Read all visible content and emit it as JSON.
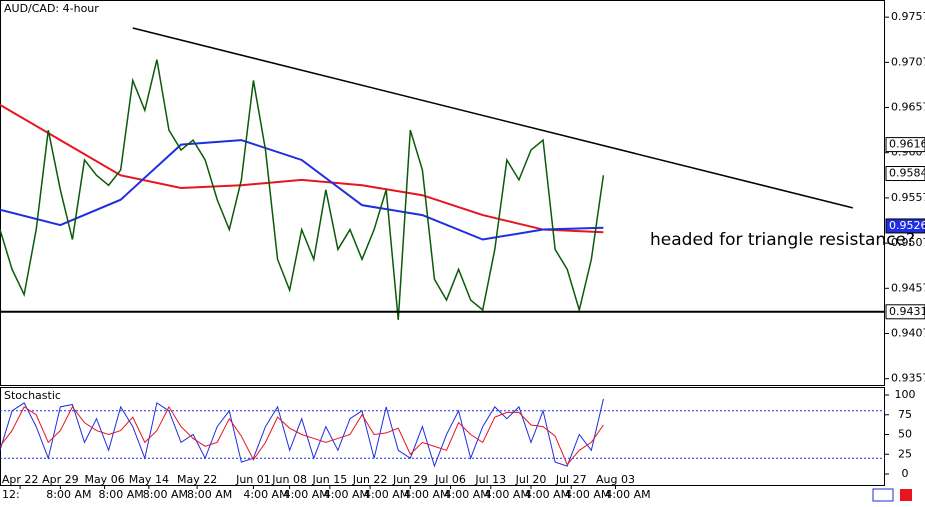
{
  "chart_data": {
    "type": "line",
    "title": "AUD/CAD: 4-hour",
    "annotation": "headed for triangle resistance?",
    "xlim": [
      0,
      220
    ],
    "xticks": [
      {
        "value": 5,
        "label": "Apr 22"
      },
      {
        "value": 15,
        "label": "Apr 29"
      },
      {
        "value": 26,
        "label": "May 06"
      },
      {
        "value": 37,
        "label": "May 14"
      },
      {
        "value": 49,
        "label": "May 22"
      },
      {
        "value": 63,
        "label": "Jun 01"
      },
      {
        "value": 72,
        "label": "Jun 08"
      },
      {
        "value": 82,
        "label": "Jun 15"
      },
      {
        "value": 92,
        "label": "Jun 22"
      },
      {
        "value": 102,
        "label": "Jun 29"
      },
      {
        "value": 112,
        "label": "Jul 06"
      },
      {
        "value": 122,
        "label": "Jul 13"
      },
      {
        "value": 132,
        "label": "Jul 20"
      },
      {
        "value": 142,
        "label": "Jul 27"
      },
      {
        "value": 153,
        "label": "Aug 03"
      }
    ],
    "time_ticks": [
      {
        "value": 0,
        "label": "12:"
      },
      {
        "value": 11,
        "label": "8:00 AM"
      },
      {
        "value": 24,
        "label": "8:00 AM"
      },
      {
        "value": 35,
        "label": "8:00 AM"
      },
      {
        "value": 46,
        "label": "8:00 AM"
      },
      {
        "value": 60,
        "label": "4:00 AM"
      },
      {
        "value": 70,
        "label": "4:00 AM"
      },
      {
        "value": 80,
        "label": "4:00 AM"
      },
      {
        "value": 90,
        "label": "4:00 AM"
      },
      {
        "value": 100,
        "label": "4:00 AM"
      },
      {
        "value": 110,
        "label": "4:00 AM"
      },
      {
        "value": 120,
        "label": "4:00 AM"
      },
      {
        "value": 130,
        "label": "4:00 AM"
      },
      {
        "value": 140,
        "label": "4:00 AM"
      },
      {
        "value": 150,
        "label": "4:00 AM"
      }
    ],
    "ylim": [
      0.935,
      0.9776
    ],
    "yticks": [
      0.9757,
      0.9707,
      0.9657,
      0.9607,
      0.9557,
      0.9507,
      0.9457,
      0.9407,
      0.9357
    ],
    "series": [
      {
        "color": "#0a5a0a",
        "x": [
          0,
          3,
          6,
          9,
          12,
          15,
          18,
          21,
          24,
          27,
          30,
          33,
          36,
          39,
          42,
          45,
          48,
          51,
          54,
          57,
          60,
          63,
          66,
          69,
          72,
          75,
          78,
          81,
          84,
          87,
          90,
          93,
          96,
          99,
          102,
          105,
          108,
          111,
          114,
          117,
          120,
          123,
          126,
          129,
          132,
          135,
          138,
          141,
          144,
          147,
          150
        ],
        "values": [
          0.9522,
          0.9478,
          0.945,
          0.9522,
          0.9632,
          0.9566,
          0.9511,
          0.9599,
          0.9582,
          0.9571,
          0.9588,
          0.9687,
          0.9654,
          0.971,
          0.9632,
          0.961,
          0.9621,
          0.9599,
          0.9555,
          0.9522,
          0.9577,
          0.9687,
          0.961,
          0.9489,
          0.9455,
          0.9522,
          0.9489,
          0.9566,
          0.95,
          0.9522,
          0.9489,
          0.9522,
          0.9566,
          0.9422,
          0.9632,
          0.9588,
          0.9467,
          0.9444,
          0.9478,
          0.9444,
          0.9433,
          0.95,
          0.9599,
          0.9577,
          0.961,
          0.9621,
          0.95,
          0.9478,
          0.9433,
          0.9489,
          0.9582
        ]
      }
    ],
    "moving_averages": [
      {
        "color": "#e8141e",
        "x": [
          0,
          15,
          30,
          45,
          60,
          75,
          90,
          105,
          120,
          135,
          150
        ],
        "values": [
          0.966,
          0.9621,
          0.9582,
          0.9568,
          0.9571,
          0.9577,
          0.9571,
          0.956,
          0.9538,
          0.9522,
          0.9519
        ]
      },
      {
        "color": "#1e2ee0",
        "x": [
          0,
          15,
          30,
          45,
          60,
          75,
          90,
          105,
          120,
          135,
          150
        ],
        "values": [
          0.9544,
          0.9527,
          0.9555,
          0.9616,
          0.9621,
          0.9599,
          0.9549,
          0.9538,
          0.9511,
          0.9522,
          0.9524
        ]
      }
    ],
    "trendline": {
      "color": "#000000",
      "x": [
        33,
        212
      ],
      "values": [
        0.9745,
        0.9546
      ]
    },
    "support_level": 0.9431,
    "price_markers": [
      {
        "value": 0.9616,
        "color": "#ffffff"
      },
      {
        "value": 0.9584,
        "color": "#ffffff"
      },
      {
        "value": 0.9526,
        "color": "#1e2ee0"
      }
    ],
    "stochastic": {
      "title": "Stochastic",
      "ylim": [
        0,
        100
      ],
      "yticks": [
        100,
        75,
        50,
        25,
        0
      ],
      "levels": [
        80,
        20
      ],
      "series": [
        {
          "color": "#1e2ee0",
          "values": [
            30,
            80,
            90,
            60,
            20,
            85,
            88,
            40,
            70,
            30,
            85,
            60,
            20,
            90,
            80,
            40,
            50,
            20,
            60,
            80,
            15,
            20,
            60,
            85,
            30,
            70,
            20,
            60,
            30,
            70,
            80,
            20,
            85,
            30,
            20,
            60,
            10,
            50,
            80,
            20,
            60,
            85,
            70,
            85,
            40,
            80,
            15,
            10,
            50,
            30,
            95
          ]
        },
        {
          "color": "#e8141e",
          "values": [
            35,
            55,
            85,
            75,
            40,
            55,
            85,
            65,
            55,
            50,
            55,
            72,
            40,
            55,
            85,
            60,
            45,
            35,
            40,
            70,
            48,
            18,
            40,
            72,
            58,
            50,
            45,
            40,
            45,
            50,
            75,
            50,
            52,
            58,
            25,
            40,
            35,
            30,
            65,
            50,
            40,
            72,
            78,
            78,
            62,
            60,
            48,
            12,
            30,
            40,
            62
          ]
        }
      ]
    }
  }
}
